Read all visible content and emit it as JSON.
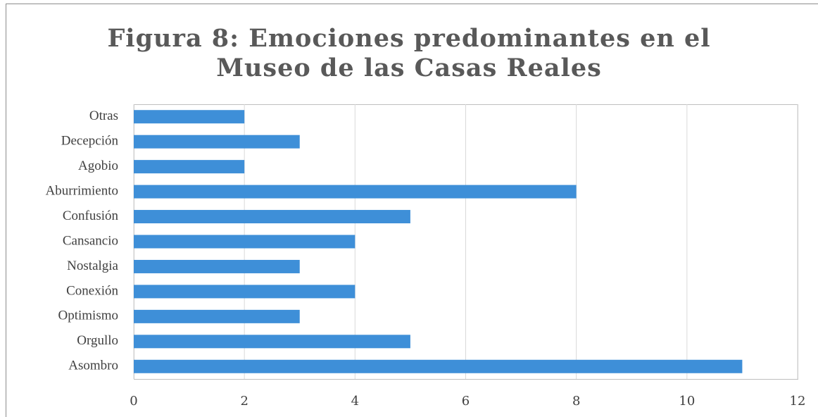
{
  "chart_data": {
    "type": "barh",
    "title": "Figura 8: Emociones predominantes en el Museo de las Casas Reales",
    "categories": [
      "Asombro",
      "Orgullo",
      "Optimismo",
      "Conexión",
      "Nostalgia",
      "Cansancio",
      "Confusión",
      "Aburrimiento",
      "Agobio",
      "Decepción",
      "Otras"
    ],
    "values": [
      11,
      5,
      3,
      4,
      3,
      4,
      5,
      8,
      2,
      3,
      2
    ],
    "color": "#3e8fd8",
    "xlim": [
      0,
      12
    ],
    "xticks": [
      0,
      2,
      4,
      6,
      8,
      10,
      12
    ],
    "grid": true
  }
}
